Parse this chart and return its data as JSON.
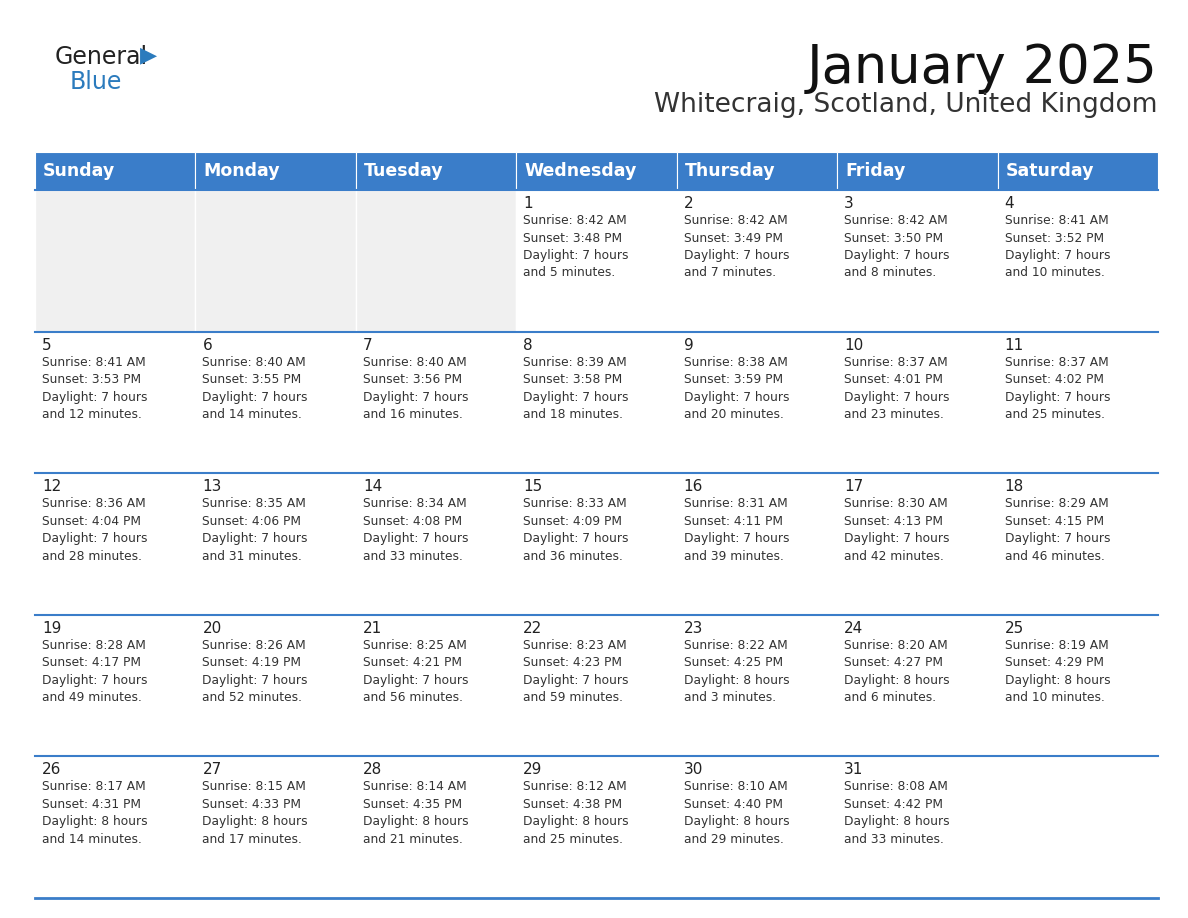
{
  "title": "January 2025",
  "subtitle": "Whitecraig, Scotland, United Kingdom",
  "header_bg": "#3A7DC9",
  "header_text_color": "#FFFFFF",
  "cell_bg_white": "#FFFFFF",
  "cell_bg_gray": "#F0F0F0",
  "header_line_color": "#3A7DC9",
  "border_line_color": "#3A7DC9",
  "text_color": "#333333",
  "days_of_week": [
    "Sunday",
    "Monday",
    "Tuesday",
    "Wednesday",
    "Thursday",
    "Friday",
    "Saturday"
  ],
  "weeks": [
    [
      {
        "day": "",
        "info": ""
      },
      {
        "day": "",
        "info": ""
      },
      {
        "day": "",
        "info": ""
      },
      {
        "day": "1",
        "info": "Sunrise: 8:42 AM\nSunset: 3:48 PM\nDaylight: 7 hours\nand 5 minutes."
      },
      {
        "day": "2",
        "info": "Sunrise: 8:42 AM\nSunset: 3:49 PM\nDaylight: 7 hours\nand 7 minutes."
      },
      {
        "day": "3",
        "info": "Sunrise: 8:42 AM\nSunset: 3:50 PM\nDaylight: 7 hours\nand 8 minutes."
      },
      {
        "day": "4",
        "info": "Sunrise: 8:41 AM\nSunset: 3:52 PM\nDaylight: 7 hours\nand 10 minutes."
      }
    ],
    [
      {
        "day": "5",
        "info": "Sunrise: 8:41 AM\nSunset: 3:53 PM\nDaylight: 7 hours\nand 12 minutes."
      },
      {
        "day": "6",
        "info": "Sunrise: 8:40 AM\nSunset: 3:55 PM\nDaylight: 7 hours\nand 14 minutes."
      },
      {
        "day": "7",
        "info": "Sunrise: 8:40 AM\nSunset: 3:56 PM\nDaylight: 7 hours\nand 16 minutes."
      },
      {
        "day": "8",
        "info": "Sunrise: 8:39 AM\nSunset: 3:58 PM\nDaylight: 7 hours\nand 18 minutes."
      },
      {
        "day": "9",
        "info": "Sunrise: 8:38 AM\nSunset: 3:59 PM\nDaylight: 7 hours\nand 20 minutes."
      },
      {
        "day": "10",
        "info": "Sunrise: 8:37 AM\nSunset: 4:01 PM\nDaylight: 7 hours\nand 23 minutes."
      },
      {
        "day": "11",
        "info": "Sunrise: 8:37 AM\nSunset: 4:02 PM\nDaylight: 7 hours\nand 25 minutes."
      }
    ],
    [
      {
        "day": "12",
        "info": "Sunrise: 8:36 AM\nSunset: 4:04 PM\nDaylight: 7 hours\nand 28 minutes."
      },
      {
        "day": "13",
        "info": "Sunrise: 8:35 AM\nSunset: 4:06 PM\nDaylight: 7 hours\nand 31 minutes."
      },
      {
        "day": "14",
        "info": "Sunrise: 8:34 AM\nSunset: 4:08 PM\nDaylight: 7 hours\nand 33 minutes."
      },
      {
        "day": "15",
        "info": "Sunrise: 8:33 AM\nSunset: 4:09 PM\nDaylight: 7 hours\nand 36 minutes."
      },
      {
        "day": "16",
        "info": "Sunrise: 8:31 AM\nSunset: 4:11 PM\nDaylight: 7 hours\nand 39 minutes."
      },
      {
        "day": "17",
        "info": "Sunrise: 8:30 AM\nSunset: 4:13 PM\nDaylight: 7 hours\nand 42 minutes."
      },
      {
        "day": "18",
        "info": "Sunrise: 8:29 AM\nSunset: 4:15 PM\nDaylight: 7 hours\nand 46 minutes."
      }
    ],
    [
      {
        "day": "19",
        "info": "Sunrise: 8:28 AM\nSunset: 4:17 PM\nDaylight: 7 hours\nand 49 minutes."
      },
      {
        "day": "20",
        "info": "Sunrise: 8:26 AM\nSunset: 4:19 PM\nDaylight: 7 hours\nand 52 minutes."
      },
      {
        "day": "21",
        "info": "Sunrise: 8:25 AM\nSunset: 4:21 PM\nDaylight: 7 hours\nand 56 minutes."
      },
      {
        "day": "22",
        "info": "Sunrise: 8:23 AM\nSunset: 4:23 PM\nDaylight: 7 hours\nand 59 minutes."
      },
      {
        "day": "23",
        "info": "Sunrise: 8:22 AM\nSunset: 4:25 PM\nDaylight: 8 hours\nand 3 minutes."
      },
      {
        "day": "24",
        "info": "Sunrise: 8:20 AM\nSunset: 4:27 PM\nDaylight: 8 hours\nand 6 minutes."
      },
      {
        "day": "25",
        "info": "Sunrise: 8:19 AM\nSunset: 4:29 PM\nDaylight: 8 hours\nand 10 minutes."
      }
    ],
    [
      {
        "day": "26",
        "info": "Sunrise: 8:17 AM\nSunset: 4:31 PM\nDaylight: 8 hours\nand 14 minutes."
      },
      {
        "day": "27",
        "info": "Sunrise: 8:15 AM\nSunset: 4:33 PM\nDaylight: 8 hours\nand 17 minutes."
      },
      {
        "day": "28",
        "info": "Sunrise: 8:14 AM\nSunset: 4:35 PM\nDaylight: 8 hours\nand 21 minutes."
      },
      {
        "day": "29",
        "info": "Sunrise: 8:12 AM\nSunset: 4:38 PM\nDaylight: 8 hours\nand 25 minutes."
      },
      {
        "day": "30",
        "info": "Sunrise: 8:10 AM\nSunset: 4:40 PM\nDaylight: 8 hours\nand 29 minutes."
      },
      {
        "day": "31",
        "info": "Sunrise: 8:08 AM\nSunset: 4:42 PM\nDaylight: 8 hours\nand 33 minutes."
      },
      {
        "day": "",
        "info": ""
      }
    ]
  ],
  "logo_general_color": "#222222",
  "logo_blue_color": "#2B7BBD",
  "title_fontsize": 38,
  "subtitle_fontsize": 19,
  "day_num_fontsize": 11,
  "info_fontsize": 8.8,
  "header_fontsize": 12.5
}
